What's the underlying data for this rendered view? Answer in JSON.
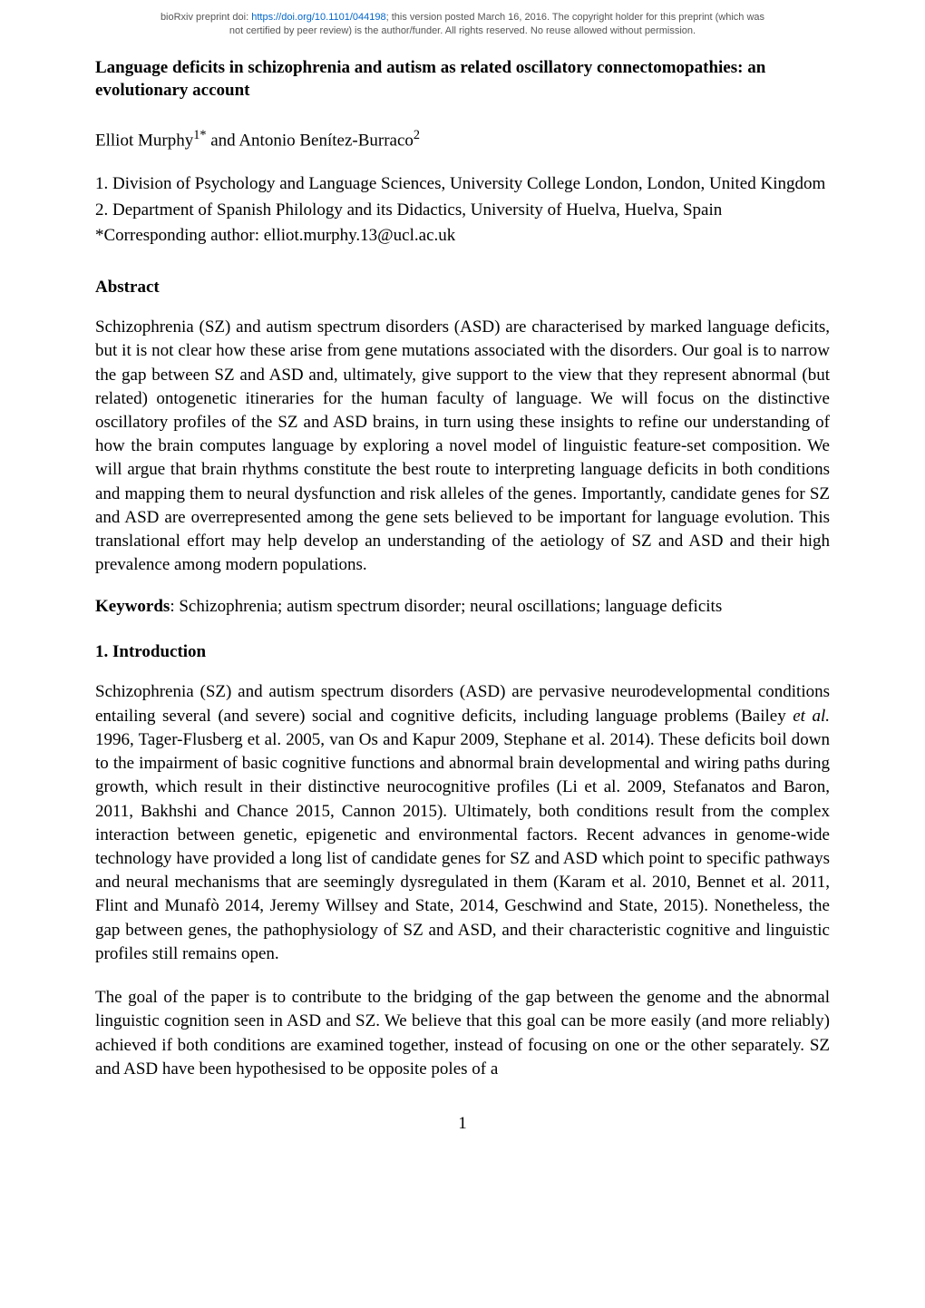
{
  "preprint": {
    "line1_prefix": "bioRxiv preprint doi: ",
    "doi_url": "https://doi.org/10.1101/044198",
    "line1_suffix": "; this version posted March 16, 2016. The copyright holder for this preprint (which was",
    "line2": "not certified by peer review) is the author/funder. All rights reserved. No reuse allowed without permission."
  },
  "title": "Language deficits in schizophrenia and autism as related oscillatory connectomopathies: an evolutionary account",
  "authors_prefix": "Elliot Murphy",
  "authors_sup1": "1*",
  "authors_mid": " and Antonio Benítez-Burraco",
  "authors_sup2": "2",
  "affiliations": {
    "a1": "1. Division of Psychology and Language Sciences, University College London, London, United Kingdom",
    "a2": "2. Department of Spanish Philology and its Didactics, University of Huelva, Huelva, Spain",
    "corresponding": "*Corresponding author: elliot.murphy.13@ucl.ac.uk"
  },
  "sections": {
    "abstract_heading": "Abstract",
    "abstract_body": "Schizophrenia (SZ) and autism spectrum disorders (ASD) are characterised by marked language deficits, but it is not clear how these arise from gene mutations associated with the disorders. Our goal is to narrow the gap between SZ and ASD and, ultimately, give support to the view that they represent abnormal (but related) ontogenetic itineraries for the human faculty of language. We will focus on the distinctive oscillatory profiles of the SZ and ASD brains, in turn using these insights to refine our understanding of how the brain computes language by exploring a novel model of linguistic feature-set composition. We will argue that brain rhythms constitute the best route to interpreting language deficits in both conditions and mapping them to neural dysfunction and risk alleles of the genes. Importantly, candidate genes for SZ and ASD are overrepresented among the gene sets believed to be important for language evolution. This translational effort may help develop an understanding of the aetiology of SZ and ASD and their high prevalence among modern populations.",
    "keywords_label": "Keywords",
    "keywords_body": ": Schizophrenia; autism spectrum disorder; neural oscillations; language deficits",
    "intro_heading": "1. Introduction",
    "intro_p1_a": "Schizophrenia (SZ) and autism spectrum disorders (ASD) are pervasive neurodevelopmental conditions entailing several (and severe) social and cognitive deficits, including language problems (Bailey ",
    "intro_p1_italic": "et al.",
    "intro_p1_b": " 1996, Tager-Flusberg et al. 2005, van Os and Kapur 2009, Stephane et al. 2014). These deficits boil down to the impairment of basic cognitive functions and abnormal brain developmental and wiring paths during growth, which result in their distinctive neurocognitive profiles (Li et al. 2009, Stefanatos and Baron, 2011, Bakhshi and Chance 2015, Cannon 2015). Ultimately, both conditions result from the complex interaction between genetic, epigenetic and environmental factors. Recent advances in genome-wide technology have provided a long list of candidate genes for SZ and ASD which point to specific pathways and neural mechanisms that are seemingly dysregulated in them (Karam et al. 2010, Bennet et al. 2011, Flint and Munafò 2014, Jeremy Willsey and State, 2014, Geschwind and State, 2015). Nonetheless, the gap between genes, the pathophysiology of SZ and ASD, and their characteristic cognitive and linguistic profiles still remains open.",
    "intro_p2": "The goal of the paper is to contribute to the bridging of the gap between the genome and the abnormal linguistic cognition seen in ASD and SZ. We believe that this goal can be more easily (and more reliably) achieved if both conditions are examined together, instead of focusing on one or the other separately. SZ and ASD have been hypothesised to be opposite poles of a"
  },
  "page_number": "1"
}
